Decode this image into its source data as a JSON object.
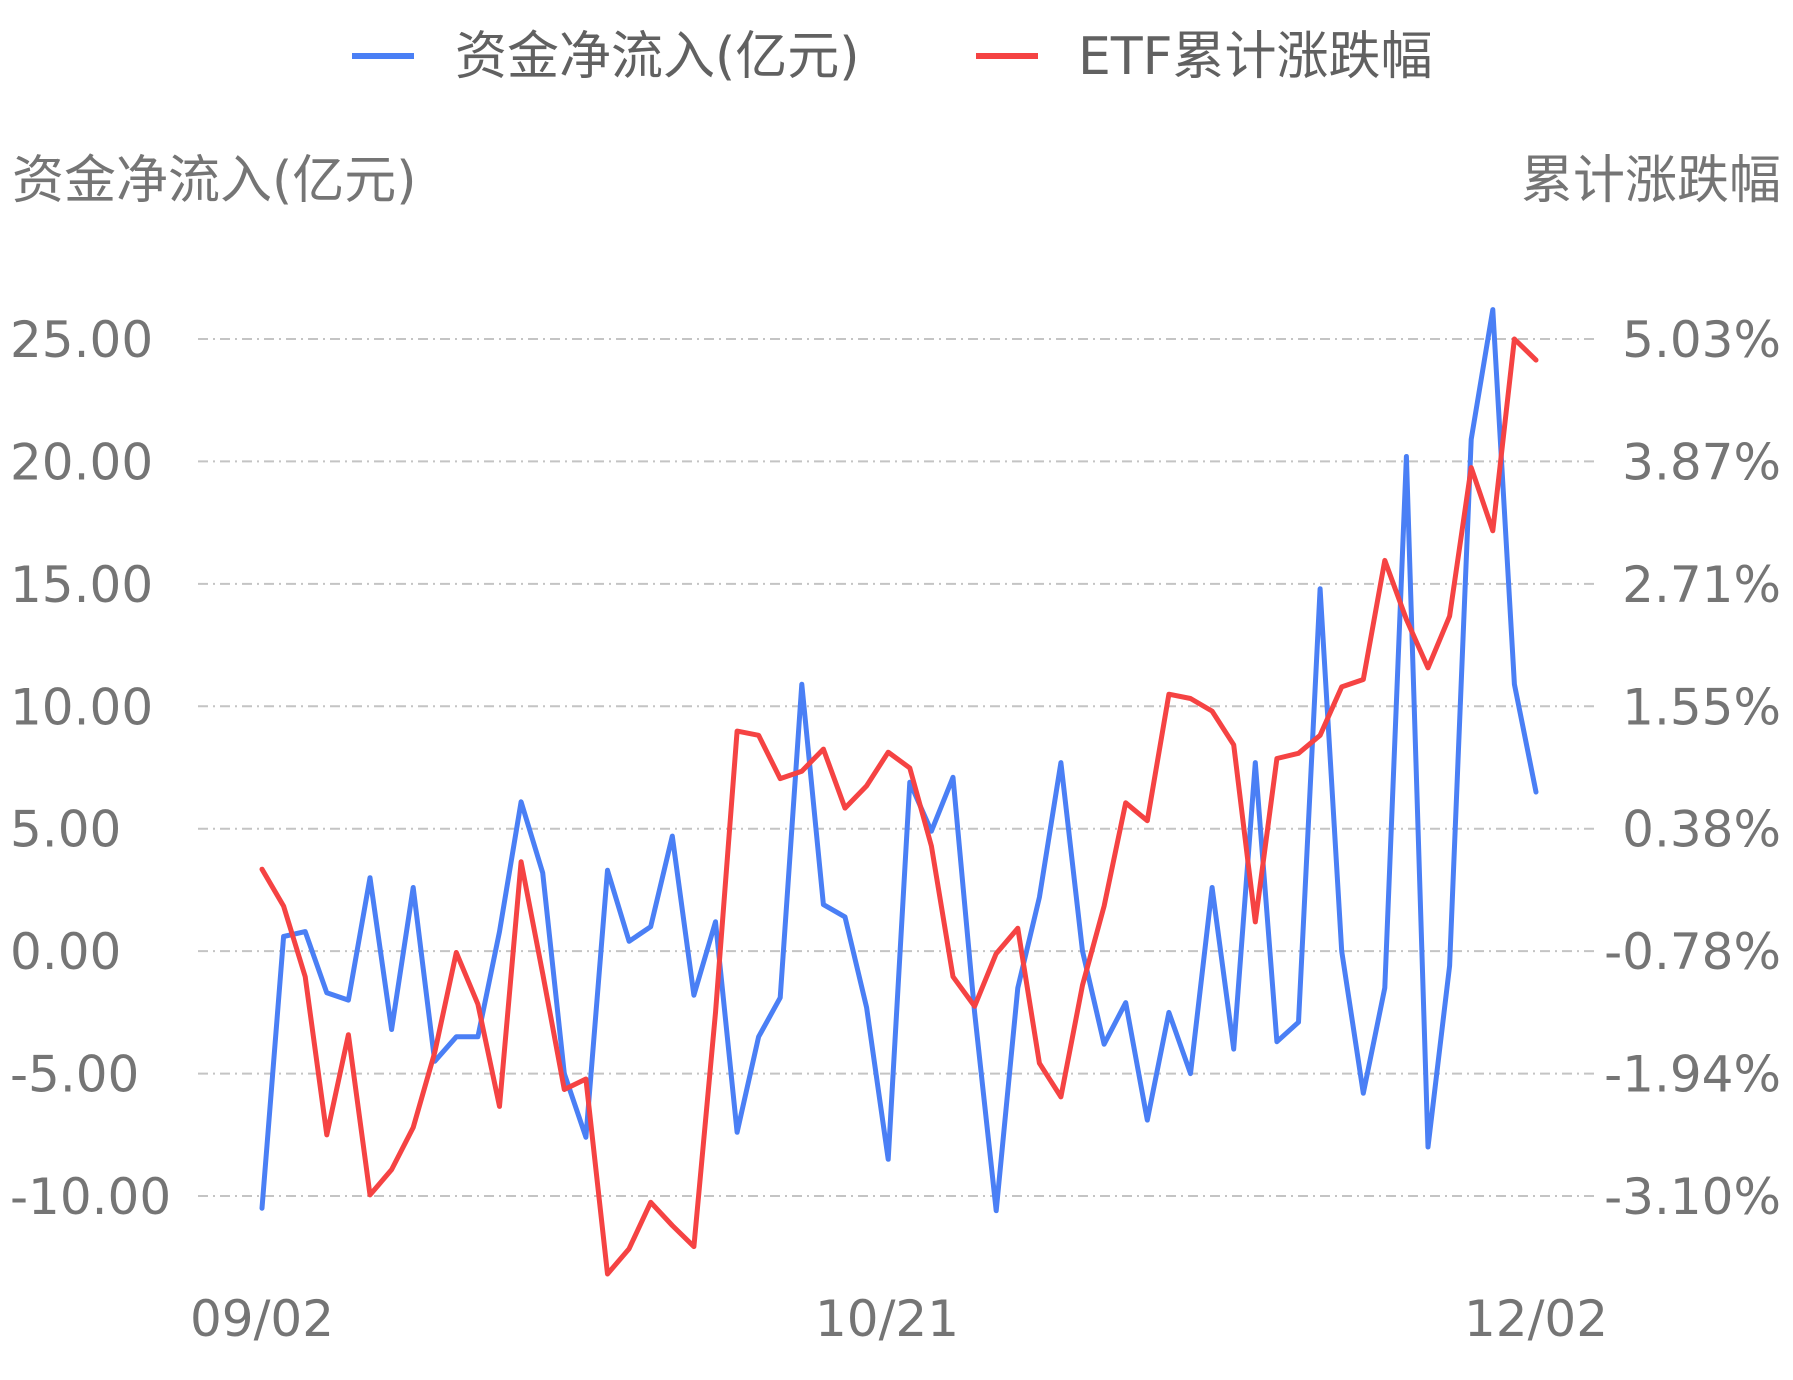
{
  "chart_data": {
    "type": "line",
    "legend": {
      "position": "top-center",
      "items": [
        {
          "name": "资金净流入(亿元)",
          "color": "#4a7ff5"
        },
        {
          "name": "ETF累计涨跌幅",
          "color": "#f54343"
        }
      ]
    },
    "left_axis": {
      "title": "资金净流入(亿元)",
      "ticks": [
        "25.00",
        "20.00",
        "15.00",
        "10.00",
        "5.00",
        "0.00",
        "-5.00",
        "-10.00"
      ],
      "range": [
        -10,
        25
      ]
    },
    "right_axis": {
      "title": "累计涨跌幅",
      "ticks": [
        "5.03%",
        "3.87%",
        "2.71%",
        "1.55%",
        "0.38%",
        "-0.78%",
        "-1.94%",
        "-3.10%"
      ],
      "range": [
        -3.1,
        5.03
      ]
    },
    "x_labels": [
      "09/02",
      "10/21",
      "12/02"
    ],
    "grid": true,
    "series": [
      {
        "name": "资金净流入(亿元)",
        "axis": "left",
        "color": "#4a7ff5",
        "values": [
          -10.5,
          0.6,
          0.8,
          -1.7,
          -2.0,
          3.0,
          -3.2,
          2.6,
          -4.5,
          -3.5,
          -3.5,
          0.8,
          6.1,
          3.2,
          -5.0,
          -7.6,
          3.3,
          0.4,
          1.0,
          4.7,
          -1.8,
          1.2,
          -7.4,
          -3.5,
          -1.9,
          10.9,
          1.9,
          1.4,
          -2.3,
          -8.5,
          6.9,
          4.9,
          7.1,
          -2.5,
          -10.6,
          -1.5,
          2.2,
          7.7,
          0.0,
          -3.8,
          -2.1,
          -6.9,
          -2.5,
          -5.0,
          2.6,
          -4.0,
          7.7,
          -3.7,
          -2.9,
          14.8,
          0.0,
          -5.8,
          -1.5,
          20.2,
          -8.0,
          -0.6,
          20.9,
          26.2,
          10.9,
          6.5
        ]
      },
      {
        "name": "ETF累计涨跌幅",
        "axis": "right",
        "color": "#f54343",
        "values": [
          0.0,
          -0.35,
          -1.02,
          -2.52,
          -1.57,
          -3.09,
          -2.85,
          -2.45,
          -1.74,
          -0.79,
          -1.28,
          -2.25,
          0.07,
          -0.99,
          -2.09,
          -1.99,
          -3.84,
          -3.6,
          -3.16,
          -3.38,
          -3.58,
          -1.36,
          1.31,
          1.27,
          0.86,
          0.93,
          1.14,
          0.58,
          0.79,
          1.11,
          0.96,
          0.22,
          -1.02,
          -1.3,
          -0.8,
          -0.56,
          -1.84,
          -2.16,
          -1.1,
          -0.35,
          0.63,
          0.46,
          1.66,
          1.62,
          1.5,
          1.18,
          -0.5,
          1.05,
          1.1,
          1.27,
          1.73,
          1.8,
          2.93,
          2.37,
          1.91,
          2.4,
          3.81,
          3.21,
          5.03,
          4.83
        ]
      }
    ]
  }
}
